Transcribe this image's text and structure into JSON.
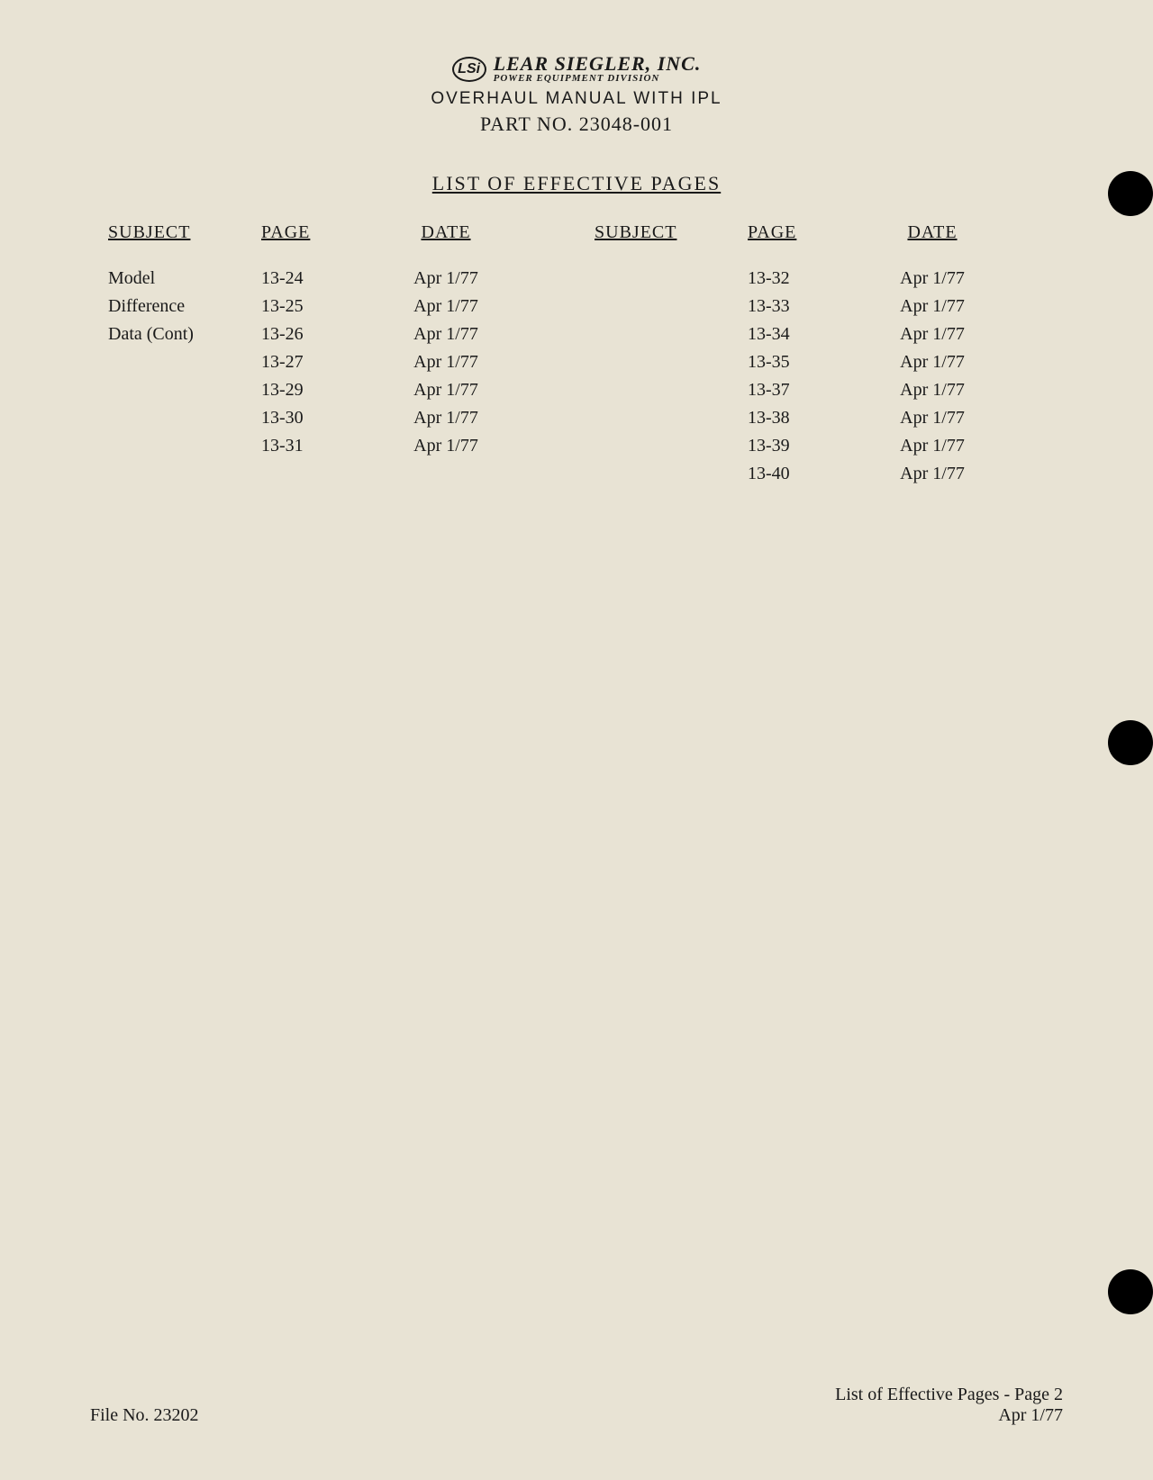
{
  "header": {
    "logo_text": "LSi",
    "company_title": "LEAR SIEGLER, INC.",
    "company_subtitle": "POWER EQUIPMENT DIVISION",
    "manual_title": "OVERHAUL MANUAL WITH IPL",
    "part_no": "PART NO. 23048-001"
  },
  "section_title": "LIST OF EFFECTIVE PAGES",
  "table": {
    "headers": {
      "subject": "SUBJECT",
      "page": "PAGE",
      "date": "DATE"
    },
    "left_subject_lines": [
      "Model",
      "Difference",
      "Data (Cont)"
    ],
    "left_rows": [
      {
        "page": "13-24",
        "date": "Apr 1/77"
      },
      {
        "page": "13-25",
        "date": "Apr 1/77"
      },
      {
        "page": "13-26",
        "date": "Apr 1/77"
      },
      {
        "page": "13-27",
        "date": "Apr 1/77"
      },
      {
        "page": "13-29",
        "date": "Apr 1/77"
      },
      {
        "page": "13-30",
        "date": "Apr 1/77"
      },
      {
        "page": "13-31",
        "date": "Apr 1/77"
      }
    ],
    "right_rows": [
      {
        "page": "13-32",
        "date": "Apr 1/77"
      },
      {
        "page": "13-33",
        "date": "Apr 1/77"
      },
      {
        "page": "13-34",
        "date": "Apr 1/77"
      },
      {
        "page": "13-35",
        "date": "Apr 1/77"
      },
      {
        "page": "13-37",
        "date": "Apr 1/77"
      },
      {
        "page": "13-38",
        "date": "Apr 1/77"
      },
      {
        "page": "13-39",
        "date": "Apr 1/77"
      },
      {
        "page": "13-40",
        "date": "Apr 1/77"
      }
    ]
  },
  "footer": {
    "file_no": "File No. 23202",
    "page_label": "List of Effective Pages - Page 2",
    "date": "Apr 1/77"
  },
  "colors": {
    "background": "#e8e3d4",
    "text": "#1a1a1a",
    "hole": "#000000"
  }
}
